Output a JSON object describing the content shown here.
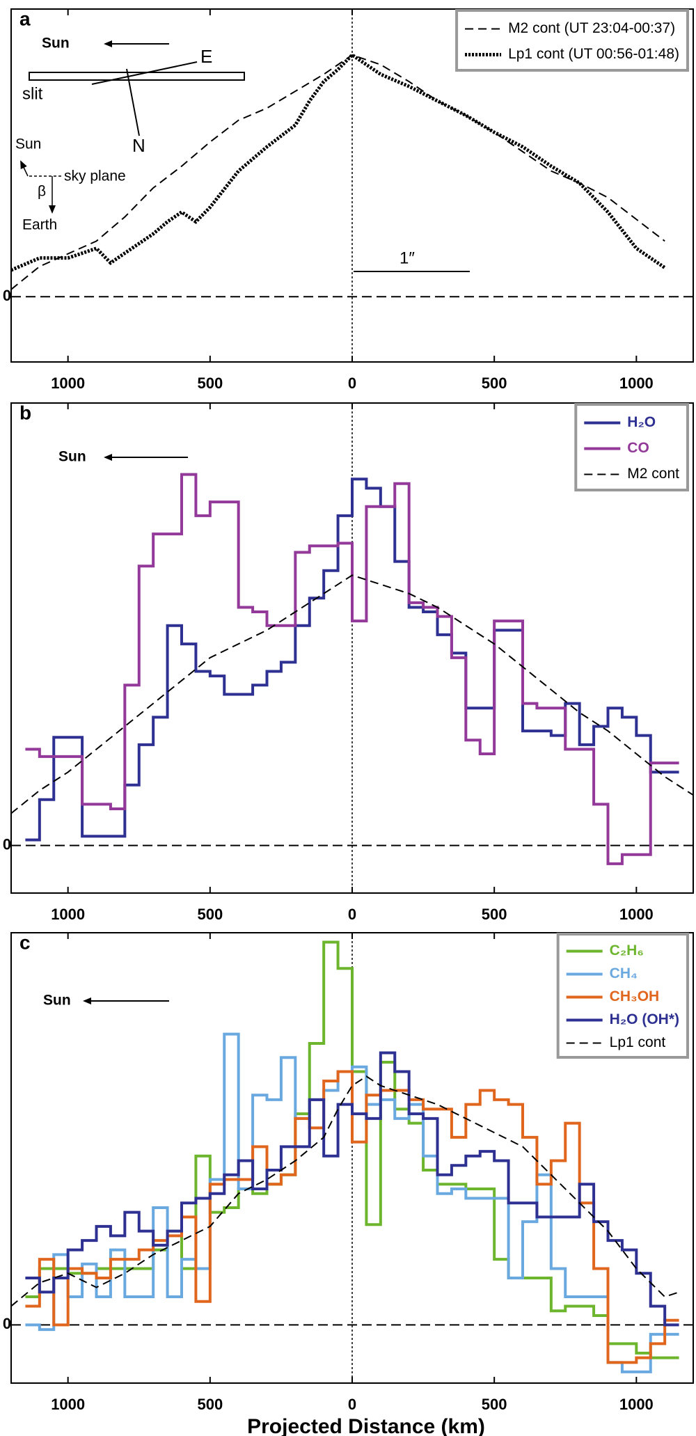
{
  "chart_data": [
    {
      "type": "line",
      "label": "a",
      "legend": "upper right",
      "annotations": [
        "Sun",
        "E",
        "slit",
        "N",
        "Sun",
        "sky plane",
        "β",
        "Earth",
        "1″"
      ],
      "xlim": [
        -1200,
        1200
      ],
      "xticks": [
        {
          "value": -1000,
          "label": "1000"
        },
        {
          "value": -500,
          "label": "500"
        },
        0,
        500,
        1000
      ],
      "ylim": [
        -0.27,
        1.19
      ],
      "yticks": [
        0
      ],
      "series": [
        {
          "name": "M2  cont (UT 23:04-00:37)",
          "color": "#000000",
          "linestyle": "dashed",
          "x": [
            -1200,
            -1100,
            -900,
            -800,
            -700,
            -600,
            -500,
            -400,
            -300,
            -200,
            -100,
            0,
            100,
            200,
            300,
            400,
            500,
            600,
            700,
            800,
            900,
            1000,
            1100
          ],
          "values": [
            0.03,
            0.125,
            0.23,
            0.33,
            0.45,
            0.54,
            0.64,
            0.73,
            0.78,
            0.85,
            0.92,
            1.0,
            0.96,
            0.89,
            0.81,
            0.75,
            0.68,
            0.6,
            0.52,
            0.47,
            0.41,
            0.32,
            0.23
          ]
        },
        {
          "name": "Lp1 cont (UT 00:56-01:48)",
          "color": "#000000",
          "linestyle": "dotted",
          "x": [
            -1200,
            -1100,
            -1000,
            -900,
            -850,
            -800,
            -700,
            -650,
            -600,
            -550,
            -500,
            -400,
            -300,
            -200,
            -150,
            -100,
            -50,
            0,
            100,
            200,
            300,
            400,
            500,
            600,
            700,
            800,
            900,
            1000,
            1100
          ],
          "values": [
            0.11,
            0.16,
            0.16,
            0.2,
            0.14,
            0.18,
            0.26,
            0.31,
            0.35,
            0.31,
            0.37,
            0.52,
            0.62,
            0.71,
            0.81,
            0.89,
            0.94,
            1.0,
            0.92,
            0.87,
            0.81,
            0.75,
            0.68,
            0.62,
            0.54,
            0.47,
            0.35,
            0.2,
            0.12
          ]
        }
      ]
    },
    {
      "type": "line",
      "label": "b",
      "legend": "upper right",
      "annotations": [
        "Sun"
      ],
      "xlim": [
        -1200,
        1200
      ],
      "xticks": [
        {
          "value": -1000,
          "label": "1000"
        },
        {
          "value": -500,
          "label": "500"
        },
        0,
        500,
        1000
      ],
      "ylim": [
        -0.52,
        4.83
      ],
      "yticks": [
        0
      ],
      "x": [
        -1125,
        -1075,
        -1025,
        -975,
        -925,
        -875,
        -825,
        -775,
        -725,
        -675,
        -625,
        -575,
        -525,
        -475,
        -425,
        -375,
        -325,
        -275,
        -225,
        -175,
        -125,
        -75,
        -25,
        25,
        75,
        125,
        175,
        225,
        275,
        325,
        375,
        425,
        475,
        525,
        575,
        625,
        675,
        725,
        775,
        825,
        875,
        925,
        975,
        1025,
        1075,
        1125
      ],
      "series": [
        {
          "name": "H₂O",
          "color": "#2e3192",
          "linestyle": "steps",
          "values": [
            0.06,
            0.5,
            1.18,
            1.18,
            0.1,
            0.1,
            0.1,
            0.66,
            1.1,
            1.4,
            2.4,
            2.2,
            1.9,
            1.85,
            1.65,
            1.65,
            1.75,
            1.9,
            2.0,
            2.4,
            2.7,
            3.0,
            3.6,
            4.0,
            3.9,
            3.7,
            3.1,
            2.6,
            2.55,
            2.3,
            2.1,
            1.5,
            1.5,
            2.35,
            2.35,
            1.25,
            1.25,
            1.2,
            1.55,
            1.1,
            1.3,
            1.5,
            1.4,
            1.2,
            0.8,
            0.8
          ]
        },
        {
          "name": "CO",
          "color": "#93399a",
          "linestyle": "steps",
          "values": [
            1.05,
            0.97,
            0.97,
            0.97,
            0.45,
            0.45,
            0.4,
            1.75,
            3.05,
            3.4,
            3.4,
            4.05,
            3.6,
            3.75,
            3.75,
            2.6,
            2.55,
            2.4,
            2.4,
            3.2,
            3.27,
            3.27,
            3.3,
            2.45,
            3.7,
            3.7,
            3.95,
            2.65,
            2.6,
            2.5,
            2.05,
            1.15,
            1.0,
            2.45,
            2.45,
            1.55,
            1.5,
            1.5,
            1.05,
            1.05,
            0.45,
            -0.2,
            -0.1,
            -0.1,
            0.9,
            0.9
          ]
        },
        {
          "name": "M2 cont",
          "color": "#000000",
          "linestyle": "dashed",
          "x": [
            -1200,
            -1100,
            -1000,
            -900,
            -800,
            -700,
            -600,
            -500,
            -400,
            -300,
            -200,
            -100,
            0,
            100,
            200,
            300,
            400,
            500,
            600,
            700,
            800,
            900,
            1000,
            1100,
            1200
          ],
          "values": [
            0.35,
            0.6,
            0.8,
            1.05,
            1.3,
            1.55,
            1.8,
            2.05,
            2.2,
            2.35,
            2.55,
            2.75,
            2.95,
            2.85,
            2.75,
            2.6,
            2.4,
            2.2,
            1.95,
            1.7,
            1.45,
            1.25,
            1.0,
            0.75,
            0.55
          ]
        }
      ]
    },
    {
      "type": "line",
      "label": "c",
      "legend": "upper right",
      "annotations": [
        "Sun"
      ],
      "xlabel": "Projected Distance (km)",
      "xlim": [
        -1200,
        1200
      ],
      "xticks": [
        {
          "value": -1000,
          "label": "1000"
        },
        {
          "value": -500,
          "label": "500"
        },
        0,
        500,
        1000
      ],
      "ylim": [
        -0.62,
        4.18
      ],
      "yticks": [
        0
      ],
      "x": [
        -1125,
        -1075,
        -1025,
        -975,
        -925,
        -875,
        -825,
        -775,
        -725,
        -675,
        -625,
        -575,
        -525,
        -475,
        -425,
        -375,
        -325,
        -275,
        -225,
        -175,
        -125,
        -75,
        -25,
        25,
        75,
        125,
        175,
        225,
        275,
        325,
        375,
        425,
        475,
        525,
        575,
        625,
        675,
        725,
        775,
        825,
        875,
        925,
        975,
        1025,
        1075,
        1125
      ],
      "series": [
        {
          "name": "C₂H₆",
          "color": "#6cb52d",
          "linestyle": "steps",
          "values": [
            0.3,
            0.6,
            0.6,
            0.55,
            0.55,
            0.6,
            0.6,
            0.6,
            0.6,
            0.8,
            1.0,
            0.6,
            1.8,
            1.2,
            1.25,
            1.45,
            1.4,
            1.5,
            1.6,
            2.25,
            3.0,
            4.08,
            3.8,
            2.7,
            1.07,
            2.8,
            2.3,
            2.15,
            1.65,
            1.5,
            1.5,
            1.45,
            1.45,
            0.7,
            0.5,
            0.5,
            0.5,
            0.15,
            0.2,
            0.2,
            0.1,
            -0.2,
            -0.2,
            -0.3,
            -0.35,
            -0.35
          ]
        },
        {
          "name": "CH₄",
          "color": "#6aa8e0",
          "linestyle": "steps",
          "values": [
            0.0,
            -0.05,
            0.75,
            0.3,
            0.65,
            0.3,
            0.8,
            0.3,
            0.3,
            1.25,
            0.3,
            0.7,
            0.6,
            1.55,
            3.1,
            1.45,
            2.45,
            2.4,
            2.85,
            2.2,
            2.4,
            2.5,
            2.7,
            2.75,
            2.35,
            2.4,
            2.2,
            2.35,
            1.8,
            1.4,
            1.45,
            1.35,
            1.35,
            1.35,
            0.5,
            1.1,
            1.6,
            0.6,
            0.3,
            0.3,
            0.3,
            -0.4,
            -0.5,
            -0.5,
            -0.1,
            -0.1
          ]
        },
        {
          "name": "CH₃OH",
          "color": "#e0661e",
          "linestyle": "steps",
          "values": [
            0.2,
            0.7,
            0.0,
            0.6,
            0.55,
            0.5,
            0.7,
            0.7,
            0.8,
            0.9,
            0.95,
            1.15,
            0.25,
            1.5,
            1.55,
            1.55,
            1.9,
            1.5,
            1.6,
            2.2,
            2.1,
            2.6,
            2.7,
            1.95,
            2.45,
            2.5,
            2.5,
            2.4,
            2.3,
            2.3,
            2.0,
            2.35,
            2.5,
            2.4,
            2.35,
            2.0,
            1.5,
            1.75,
            2.15,
            1.3,
            0.6,
            -0.4,
            -0.4,
            -0.35,
            -0.2,
            0.05
          ]
        },
        {
          "name": "H₂O (OH*)",
          "color": "#2e3192",
          "linestyle": "steps",
          "values": [
            0.5,
            0.35,
            0.5,
            0.8,
            0.9,
            1.05,
            0.95,
            1.2,
            1.0,
            0.85,
            1.0,
            1.3,
            1.35,
            1.4,
            1.6,
            1.75,
            1.45,
            1.65,
            1.9,
            1.9,
            2.4,
            1.8,
            2.35,
            2.25,
            2.2,
            2.9,
            2.7,
            2.25,
            2.2,
            1.6,
            1.7,
            1.8,
            1.85,
            1.75,
            1.3,
            1.3,
            1.15,
            1.15,
            1.15,
            1.5,
            1.1,
            0.9,
            0.8,
            0.55,
            0.2,
            0.0
          ]
        },
        {
          "name": "Lp1 cont",
          "color": "#000000",
          "linestyle": "dashed",
          "x": [
            -1200,
            -1100,
            -1000,
            -900,
            -800,
            -700,
            -600,
            -500,
            -400,
            -300,
            -200,
            -100,
            -50,
            0,
            50,
            100,
            200,
            300,
            400,
            500,
            600,
            700,
            800,
            900,
            1000,
            1100,
            1150
          ],
          "values": [
            0.2,
            0.45,
            0.55,
            0.4,
            0.55,
            0.75,
            0.9,
            1.05,
            1.4,
            1.55,
            1.75,
            2.0,
            2.3,
            2.55,
            2.65,
            2.55,
            2.45,
            2.35,
            2.2,
            2.05,
            1.9,
            1.6,
            1.3,
            1.0,
            0.6,
            0.3,
            0.35
          ]
        }
      ]
    }
  ]
}
